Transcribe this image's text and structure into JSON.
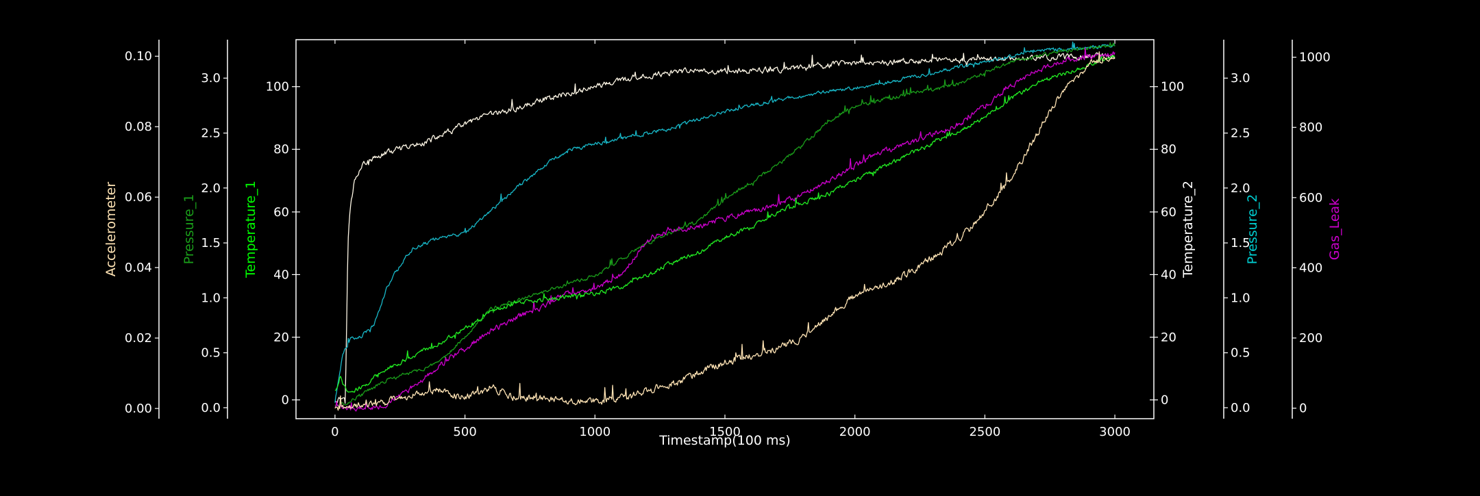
{
  "chart_data": {
    "type": "line",
    "title": "",
    "xlabel": "Timestamp(100 ms)",
    "xlim": [
      -150,
      3150
    ],
    "x_ticks": [
      0,
      500,
      1000,
      1500,
      2000,
      2500,
      3000
    ],
    "grid": false,
    "legend": "none",
    "colors": {
      "background": "#000000",
      "spine": "#ffffff",
      "tick_text": "#ffffff"
    },
    "axes": [
      {
        "id": "accelerometer",
        "label": "Accelerometer",
        "label_color": "#ffe4b5",
        "ylim": [
          -0.0029,
          0.1047
        ],
        "ticks": [
          0.0,
          0.02,
          0.04,
          0.06,
          0.08,
          0.1
        ],
        "tick_labels": [
          "0.00",
          "0.02",
          "0.04",
          "0.06",
          "0.08",
          "0.10"
        ]
      },
      {
        "id": "pressure_1",
        "label": "Pressure_1",
        "label_color": "#1a9e1a",
        "ylim": [
          -0.1,
          3.35
        ],
        "ticks": [
          0.0,
          0.5,
          1.0,
          1.5,
          2.0,
          2.5,
          3.0
        ],
        "tick_labels": [
          "0.0",
          "0.5",
          "1.0",
          "1.5",
          "2.0",
          "2.5",
          "3.0"
        ]
      },
      {
        "id": "temperature_1",
        "label": "Temperature_1",
        "label_color": "#00ff00",
        "ylim": [
          -6,
          115
        ],
        "ticks": [
          0,
          20,
          40,
          60,
          80,
          100
        ],
        "tick_labels": [
          "0",
          "20",
          "40",
          "60",
          "80",
          "100"
        ]
      },
      {
        "id": "temperature_2",
        "label": "Temperature_2",
        "label_color": "#ffffff",
        "ylim": [
          -6,
          115
        ],
        "ticks": [
          0,
          20,
          40,
          60,
          80,
          100
        ],
        "tick_labels": [
          "0",
          "20",
          "40",
          "60",
          "80",
          "100"
        ]
      },
      {
        "id": "pressure_2",
        "label": "Pressure_2",
        "label_color": "#00ced1",
        "ylim": [
          -0.1,
          3.35
        ],
        "ticks": [
          0.0,
          0.5,
          1.0,
          1.5,
          2.0,
          2.5,
          3.0
        ],
        "tick_labels": [
          "0.0",
          "0.5",
          "1.0",
          "1.5",
          "2.0",
          "2.5",
          "3.0"
        ]
      },
      {
        "id": "gas_leak",
        "label": "Gas_Leak",
        "label_color": "#cc00cc",
        "ylim": [
          -30,
          1050
        ],
        "ticks": [
          0,
          200,
          400,
          600,
          800,
          1000
        ],
        "tick_labels": [
          "0",
          "200",
          "400",
          "600",
          "800",
          "1000"
        ]
      }
    ],
    "series": [
      {
        "name": "Temperature_2",
        "axis": "temperature_2",
        "color": "#fff8e7",
        "noise": 1.6,
        "points": [
          [
            0,
            0
          ],
          [
            40,
            1
          ],
          [
            50,
            52
          ],
          [
            60,
            62
          ],
          [
            75,
            70
          ],
          [
            100,
            75
          ],
          [
            150,
            77
          ],
          [
            200,
            79
          ],
          [
            300,
            81
          ],
          [
            400,
            84
          ],
          [
            500,
            88
          ],
          [
            600,
            91
          ],
          [
            700,
            93
          ],
          [
            800,
            96
          ],
          [
            900,
            98
          ],
          [
            1000,
            100
          ],
          [
            1100,
            102
          ],
          [
            1200,
            103.5
          ],
          [
            1300,
            104.5
          ],
          [
            1400,
            105
          ],
          [
            1500,
            105
          ],
          [
            1600,
            105
          ],
          [
            1700,
            105.5
          ],
          [
            1800,
            106
          ],
          [
            1900,
            107
          ],
          [
            2000,
            107.5
          ],
          [
            2200,
            108
          ],
          [
            2400,
            108.5
          ],
          [
            2600,
            109
          ],
          [
            2800,
            109.5
          ],
          [
            3000,
            110
          ]
        ]
      },
      {
        "name": "Pressure_2",
        "axis": "pressure_2",
        "color": "#18b8c8",
        "noise": 0.03,
        "points": [
          [
            0,
            0.05
          ],
          [
            30,
            0.5
          ],
          [
            60,
            0.62
          ],
          [
            100,
            0.65
          ],
          [
            150,
            0.75
          ],
          [
            200,
            1.1
          ],
          [
            250,
            1.3
          ],
          [
            300,
            1.45
          ],
          [
            400,
            1.55
          ],
          [
            500,
            1.58
          ],
          [
            600,
            1.8
          ],
          [
            700,
            2.0
          ],
          [
            800,
            2.2
          ],
          [
            900,
            2.35
          ],
          [
            1000,
            2.4
          ],
          [
            1100,
            2.45
          ],
          [
            1200,
            2.5
          ],
          [
            1300,
            2.55
          ],
          [
            1500,
            2.7
          ],
          [
            1700,
            2.8
          ],
          [
            1900,
            2.88
          ],
          [
            2100,
            2.95
          ],
          [
            2300,
            3.05
          ],
          [
            2500,
            3.15
          ],
          [
            2700,
            3.25
          ],
          [
            2900,
            3.28
          ],
          [
            3000,
            3.3
          ]
        ]
      },
      {
        "name": "Pressure_1",
        "axis": "pressure_1",
        "color": "#1a9e1a",
        "noise": 0.03,
        "points": [
          [
            0,
            0.02
          ],
          [
            50,
            0.05
          ],
          [
            200,
            0.25
          ],
          [
            400,
            0.4
          ],
          [
            600,
            0.9
          ],
          [
            800,
            1.05
          ],
          [
            1000,
            1.2
          ],
          [
            1200,
            1.5
          ],
          [
            1400,
            1.7
          ],
          [
            1500,
            1.9
          ],
          [
            1600,
            2.05
          ],
          [
            1700,
            2.2
          ],
          [
            1800,
            2.4
          ],
          [
            1900,
            2.6
          ],
          [
            2000,
            2.75
          ],
          [
            2200,
            2.85
          ],
          [
            2400,
            2.95
          ],
          [
            2500,
            3.05
          ],
          [
            2600,
            3.15
          ],
          [
            2800,
            3.25
          ],
          [
            3000,
            3.3
          ]
        ]
      },
      {
        "name": "Gas_Leak",
        "axis": "gas_leak",
        "color": "#cc00cc",
        "noise": 14,
        "points": [
          [
            0,
            5
          ],
          [
            50,
            0
          ],
          [
            100,
            0
          ],
          [
            200,
            10
          ],
          [
            300,
            60
          ],
          [
            400,
            120
          ],
          [
            500,
            170
          ],
          [
            600,
            220
          ],
          [
            700,
            260
          ],
          [
            800,
            290
          ],
          [
            900,
            330
          ],
          [
            1000,
            340
          ],
          [
            1100,
            380
          ],
          [
            1200,
            480
          ],
          [
            1300,
            510
          ],
          [
            1400,
            520
          ],
          [
            1500,
            540
          ],
          [
            1600,
            560
          ],
          [
            1700,
            580
          ],
          [
            1800,
            610
          ],
          [
            1900,
            650
          ],
          [
            2000,
            690
          ],
          [
            2100,
            730
          ],
          [
            2200,
            750
          ],
          [
            2300,
            780
          ],
          [
            2400,
            810
          ],
          [
            2500,
            860
          ],
          [
            2600,
            920
          ],
          [
            2700,
            960
          ],
          [
            2800,
            990
          ],
          [
            3000,
            1010
          ]
        ]
      },
      {
        "name": "Temperature_1",
        "axis": "temperature_1",
        "color": "#22ee22",
        "noise": 1.2,
        "points": [
          [
            0,
            3
          ],
          [
            20,
            7
          ],
          [
            50,
            2
          ],
          [
            100,
            4
          ],
          [
            200,
            10
          ],
          [
            300,
            14
          ],
          [
            400,
            18
          ],
          [
            500,
            23
          ],
          [
            600,
            28
          ],
          [
            700,
            31
          ],
          [
            800,
            32
          ],
          [
            900,
            33
          ],
          [
            1000,
            34
          ],
          [
            1100,
            36
          ],
          [
            1200,
            40
          ],
          [
            1300,
            44
          ],
          [
            1400,
            47
          ],
          [
            1500,
            52
          ],
          [
            1600,
            55
          ],
          [
            1700,
            60
          ],
          [
            1800,
            63
          ],
          [
            1900,
            66
          ],
          [
            2000,
            70
          ],
          [
            2100,
            74
          ],
          [
            2200,
            78
          ],
          [
            2300,
            82
          ],
          [
            2400,
            86
          ],
          [
            2500,
            90
          ],
          [
            2600,
            96
          ],
          [
            2700,
            101
          ],
          [
            2800,
            104
          ],
          [
            3000,
            110
          ]
        ]
      },
      {
        "name": "Accelerometer",
        "axis": "accelerometer",
        "color": "#ffe4b5",
        "noise": 0.0018,
        "points": [
          [
            0,
            0
          ],
          [
            200,
            0.002
          ],
          [
            300,
            0.004
          ],
          [
            400,
            0.005
          ],
          [
            500,
            0.003
          ],
          [
            600,
            0.006
          ],
          [
            700,
            0.003
          ],
          [
            800,
            0.003
          ],
          [
            900,
            0.002
          ],
          [
            1000,
            0.002
          ],
          [
            1100,
            0.003
          ],
          [
            1200,
            0.005
          ],
          [
            1300,
            0.007
          ],
          [
            1400,
            0.01
          ],
          [
            1500,
            0.013
          ],
          [
            1600,
            0.015
          ],
          [
            1700,
            0.017
          ],
          [
            1800,
            0.02
          ],
          [
            1900,
            0.026
          ],
          [
            2000,
            0.032
          ],
          [
            2100,
            0.035
          ],
          [
            2200,
            0.038
          ],
          [
            2300,
            0.043
          ],
          [
            2400,
            0.048
          ],
          [
            2500,
            0.056
          ],
          [
            2600,
            0.065
          ],
          [
            2700,
            0.078
          ],
          [
            2800,
            0.09
          ],
          [
            2900,
            0.098
          ],
          [
            3000,
            0.1
          ]
        ]
      }
    ]
  }
}
